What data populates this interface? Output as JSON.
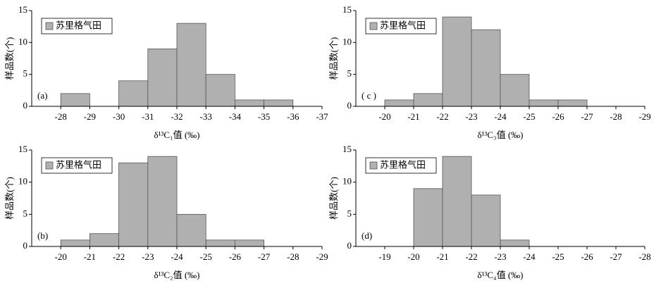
{
  "chart_data": [
    {
      "type": "histogram",
      "annotation": "(a)",
      "x_label": "δ¹³C₁值 (‰)",
      "y_label": "样品数(个)",
      "bins": [
        -28,
        -29,
        -30,
        -31,
        -32,
        -33,
        -34,
        -35,
        -36
      ],
      "series": [
        {
          "name": "苏里格气田",
          "color": "#b0b0b0",
          "values": [
            2,
            0,
            4,
            9,
            13,
            5,
            1,
            1
          ]
        }
      ],
      "xlim": [
        -27,
        -37
      ],
      "xticks": [
        -28,
        -29,
        -30,
        -31,
        -32,
        -33,
        -34,
        -35,
        -36,
        -37
      ],
      "ylim": [
        0,
        15
      ],
      "yticks": [
        0,
        5,
        10,
        15
      ]
    },
    {
      "type": "histogram",
      "annotation": "(b)",
      "x_label": "δ¹³C₂值 (‰)",
      "y_label": "样品数(个)",
      "bins": [
        -20,
        -21,
        -22,
        -23,
        -24,
        -25,
        -26,
        -27
      ],
      "series": [
        {
          "name": "苏里格气田",
          "color": "#b0b0b0",
          "values": [
            1,
            2,
            13,
            14,
            5,
            1,
            1
          ]
        }
      ],
      "xlim": [
        -19,
        -29
      ],
      "xticks": [
        -20,
        -21,
        -22,
        -23,
        -24,
        -25,
        -26,
        -27,
        -28,
        -29
      ],
      "ylim": [
        0,
        15
      ],
      "yticks": [
        0,
        5,
        10,
        15
      ]
    },
    {
      "type": "histogram",
      "annotation": "( c )",
      "x_label": "δ¹³C₃值 (‰)",
      "y_label": "样品数(个)",
      "bins": [
        -20,
        -21,
        -22,
        -23,
        -24,
        -25,
        -26,
        -27
      ],
      "series": [
        {
          "name": "苏里格气田",
          "color": "#b0b0b0",
          "values": [
            1,
            2,
            14,
            12,
            5,
            1,
            1
          ]
        }
      ],
      "xlim": [
        -19,
        -29
      ],
      "xticks": [
        -20,
        -21,
        -22,
        -23,
        -24,
        -25,
        -26,
        -27,
        -28,
        -29
      ],
      "ylim": [
        0,
        15
      ],
      "yticks": [
        0,
        5,
        10,
        15
      ]
    },
    {
      "type": "histogram",
      "annotation": "(d)",
      "x_label": "δ¹³C₄值 (‰)",
      "y_label": "样品数(个)",
      "bins": [
        -20,
        -21,
        -22,
        -23,
        -24
      ],
      "series": [
        {
          "name": "苏里格气田",
          "color": "#b0b0b0",
          "values": [
            9,
            14,
            8,
            1
          ]
        }
      ],
      "xlim": [
        -18,
        -28
      ],
      "xticks": [
        -19,
        -20,
        -21,
        -22,
        -23,
        -24,
        -25,
        -26,
        -27,
        -28
      ],
      "ylim": [
        0,
        15
      ],
      "yticks": [
        0,
        5,
        10,
        15
      ]
    }
  ]
}
